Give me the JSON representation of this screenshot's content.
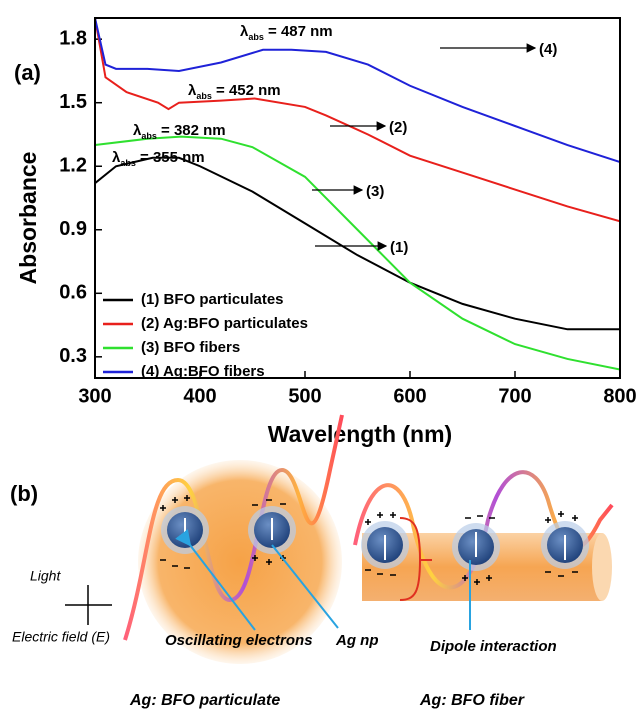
{
  "chart_data": {
    "type": "line",
    "panel_label": "(a)",
    "xlabel": "Wavelength (nm)",
    "ylabel": "Absorbance",
    "xlim": [
      300,
      800
    ],
    "xticks": [
      300,
      400,
      500,
      600,
      700,
      800
    ],
    "ylim": [
      0.2,
      1.9
    ],
    "yticks": [
      0.3,
      0.6,
      0.9,
      1.2,
      1.5,
      1.8
    ],
    "legend": "lower left",
    "series": [
      {
        "name": "(1) BFO particulates",
        "color": "#000000",
        "x": [
          300,
          320,
          355,
          380,
          400,
          450,
          500,
          550,
          600,
          650,
          700,
          750,
          800
        ],
        "values": [
          1.12,
          1.2,
          1.24,
          1.24,
          1.2,
          1.08,
          0.93,
          0.78,
          0.65,
          0.55,
          0.48,
          0.43,
          0.43
        ]
      },
      {
        "name": "(2) Ag:BFO particulates",
        "color": "#e8201c",
        "x": [
          300,
          310,
          330,
          360,
          370,
          380,
          420,
          452,
          500,
          520,
          560,
          600,
          650,
          700,
          750,
          800
        ],
        "values": [
          1.9,
          1.62,
          1.55,
          1.5,
          1.47,
          1.5,
          1.51,
          1.52,
          1.48,
          1.44,
          1.35,
          1.25,
          1.17,
          1.09,
          1.01,
          0.94
        ]
      },
      {
        "name": "(3) BFO fibers",
        "color": "#2fe02f",
        "x": [
          300,
          350,
          382,
          420,
          450,
          500,
          550,
          600,
          650,
          700,
          750,
          800
        ],
        "values": [
          1.3,
          1.33,
          1.34,
          1.33,
          1.29,
          1.15,
          0.9,
          0.65,
          0.48,
          0.36,
          0.29,
          0.24
        ]
      },
      {
        "name": "(4) Ag:BFO fibers",
        "color": "#1f22d8",
        "x": [
          300,
          310,
          320,
          350,
          380,
          420,
          460,
          487,
          520,
          560,
          600,
          650,
          700,
          750,
          800
        ],
        "values": [
          1.9,
          1.68,
          1.66,
          1.66,
          1.65,
          1.69,
          1.75,
          1.75,
          1.74,
          1.68,
          1.58,
          1.48,
          1.39,
          1.3,
          1.22
        ]
      }
    ],
    "annotations": [
      {
        "symbol": "λ",
        "subscript": "abs",
        "text": " = 487 nm",
        "curve": "(4)"
      },
      {
        "symbol": "λ",
        "subscript": "abs",
        "text": " = 452 nm",
        "curve": "(2)"
      },
      {
        "symbol": "λ",
        "subscript": "abs",
        "text": " = 382 nm",
        "curve": "(3)"
      },
      {
        "symbol": "λ",
        "subscript": "abs",
        "text": " = 355 nm",
        "curve": "(1)"
      }
    ]
  },
  "diagram": {
    "panel_label": "(b)",
    "light": "Light",
    "field": "Electric field (E)",
    "oscillating": "Oscillating electrons",
    "ag_np": "Ag np",
    "dipole": "Dipole interaction",
    "particulate_caption": "Ag: BFO particulate",
    "fiber_caption": "Ag: BFO fiber"
  }
}
